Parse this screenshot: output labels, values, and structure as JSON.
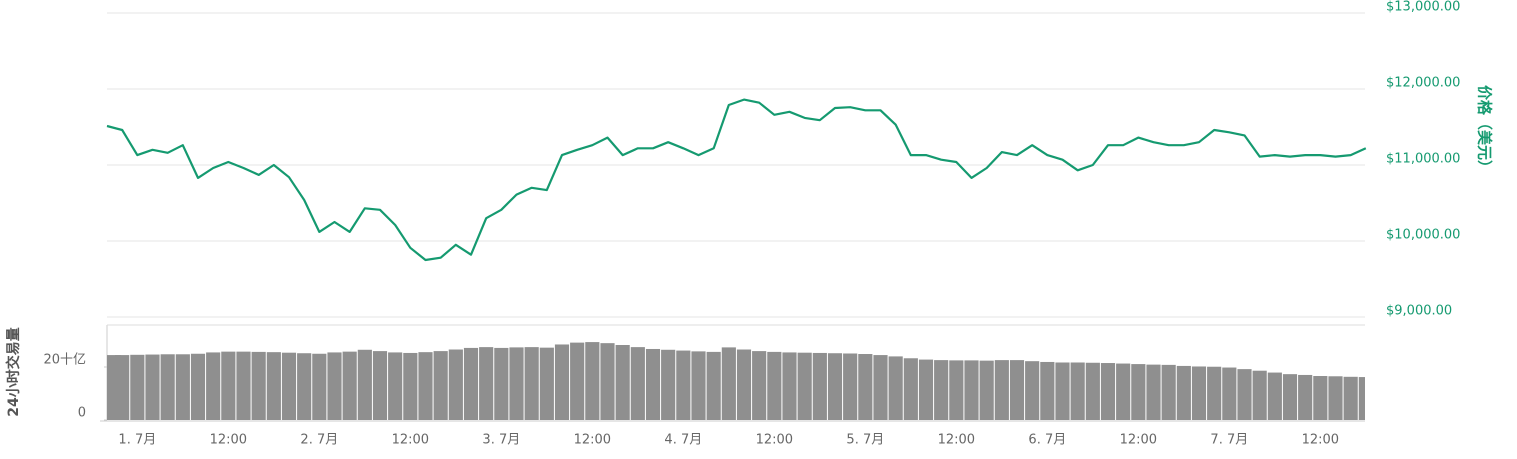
{
  "chart_data": {
    "type": "line",
    "categories": [
      null,
      null,
      "1. 7月",
      null,
      null,
      null,
      null,
      null,
      "12:00",
      null,
      null,
      null,
      null,
      null,
      "2. 7月",
      null,
      null,
      null,
      null,
      null,
      "12:00",
      null,
      null,
      null,
      null,
      null,
      "3. 7月",
      null,
      null,
      null,
      null,
      null,
      "12:00",
      null,
      null,
      null,
      null,
      null,
      "4. 7月",
      null,
      null,
      null,
      null,
      null,
      "12:00",
      null,
      null,
      null,
      null,
      null,
      "5. 7月",
      null,
      null,
      null,
      null,
      null,
      "12:00",
      null,
      null,
      null,
      null,
      null,
      "6. 7月",
      null,
      null,
      null,
      null,
      null,
      "12:00",
      null,
      null,
      null,
      null,
      null,
      "7. 7月",
      null,
      null,
      null,
      null,
      null,
      "12:00",
      null,
      null,
      null
    ],
    "series": [
      {
        "type": "line",
        "axis": "y2",
        "color": "#159a70",
        "values": [
          11513,
          11460,
          11130,
          11200,
          11160,
          11260,
          10830,
          10960,
          11040,
          10960,
          10870,
          11000,
          10840,
          10540,
          10120,
          10250,
          10120,
          10430,
          10410,
          10210,
          9910,
          9750,
          9780,
          9950,
          9820,
          10300,
          10410,
          10610,
          10700,
          10670,
          11130,
          11200,
          11260,
          11360,
          11130,
          11220,
          11220,
          11300,
          11220,
          11130,
          11220,
          11790,
          11860,
          11820,
          11660,
          11700,
          11620,
          11590,
          11750,
          11760,
          11720,
          11720,
          11530,
          11130,
          11130,
          11070,
          11040,
          10830,
          10960,
          11170,
          11130,
          11260,
          11130,
          11070,
          10930,
          11000,
          11260,
          11260,
          11360,
          11300,
          11260,
          11260,
          11300,
          11460,
          11430,
          11390,
          11110,
          11130,
          11110,
          11130,
          11130,
          11110,
          11130,
          11220
        ]
      },
      {
        "type": "bar",
        "axis": "y",
        "color": "#8f8f8f",
        "values": [
          24.5,
          24.5,
          24.6,
          24.7,
          24.8,
          24.8,
          25.0,
          25.5,
          25.8,
          25.8,
          25.7,
          25.6,
          25.4,
          25.2,
          25.0,
          25.5,
          25.8,
          26.5,
          26.0,
          25.5,
          25.3,
          25.6,
          26.0,
          26.6,
          27.2,
          27.5,
          27.2,
          27.4,
          27.5,
          27.3,
          28.5,
          29.2,
          29.4,
          29.0,
          28.3,
          27.5,
          26.8,
          26.5,
          26.2,
          25.9,
          25.7,
          27.4,
          26.6,
          26.0,
          25.7,
          25.5,
          25.4,
          25.3,
          25.2,
          25.1,
          24.9,
          24.5,
          24.0,
          23.3,
          22.8,
          22.6,
          22.5,
          22.5,
          22.4,
          22.6,
          22.6,
          22.2,
          21.9,
          21.7,
          21.7,
          21.6,
          21.5,
          21.3,
          21.1,
          20.9,
          20.8,
          20.4,
          20.2,
          20.1,
          19.8,
          19.2,
          18.6,
          17.9,
          17.3,
          17.0,
          16.6,
          16.5,
          16.3,
          16.2
        ]
      }
    ],
    "ylabel": "24小时交易量",
    "ylim": [
      0,
      36
    ],
    "yticks": [
      0,
      {
        "value": 20,
        "label": "20十亿"
      }
    ],
    "y2label": "价格（美元）",
    "y2lim": [
      9000,
      13000
    ],
    "y2ticks": [
      {
        "value": 9000,
        "label": "$9,000.00"
      },
      {
        "value": 10000,
        "label": "$10,000.00"
      },
      {
        "value": 11000,
        "label": "$11,000.00"
      },
      {
        "value": 12000,
        "label": "$12,000.00"
      },
      {
        "value": 13000,
        "label": "$13,000.00"
      }
    ],
    "grid": true
  }
}
